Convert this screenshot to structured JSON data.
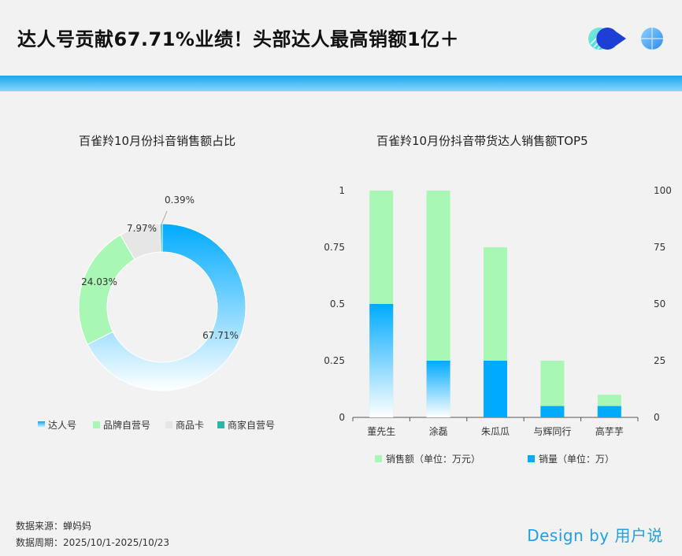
{
  "header": {
    "title": "达人号贡献67.71%业绩！头部达人最高销额1亿＋"
  },
  "colors": {
    "accent_blue": "#00aaff",
    "light_blue": "#cde9fb",
    "green": "#a9f7b4",
    "gray": "#e6e6e6",
    "teal": "#26b8a8",
    "brand": "#1ea0e6"
  },
  "chart_data": [
    {
      "type": "pie",
      "title": "百雀羚10月份抖音销售额占比",
      "labels": [
        "达人号",
        "品牌自营号",
        "商品卡",
        "商家自营号"
      ],
      "values": [
        67.71,
        24.03,
        7.97,
        0.39
      ],
      "value_labels": [
        "67.71%",
        "24.03%",
        "7.97%",
        "0.39%"
      ],
      "colors": [
        "#00aaff",
        "#a9f7b4",
        "#e6e6e6",
        "#26b8a8"
      ],
      "legend_position": "bottom",
      "donut": true
    },
    {
      "type": "bar",
      "title": "百雀羚10月份抖音带货达人销售额TOP5",
      "categories": [
        "董先生",
        "涂磊",
        "朱瓜瓜",
        "与辉同行",
        "高芋芋"
      ],
      "series": [
        {
          "name": "销售额（单位：万元）",
          "values": [
            1.0,
            1.0,
            0.75,
            0.25,
            0.1
          ],
          "axis": "left",
          "color": "#a9f7b4"
        },
        {
          "name": "销量（单位：万）",
          "values": [
            50,
            25,
            25,
            5,
            5
          ],
          "axis": "right",
          "color": "#00aaff"
        }
      ],
      "y_left": {
        "ylim": [
          0,
          1
        ],
        "ticks": [
          "0",
          "0.25",
          "0.5",
          "0.75",
          "1"
        ]
      },
      "y_right": {
        "ylim": [
          0,
          100
        ],
        "ticks": [
          "0",
          "25",
          "50",
          "75",
          "100"
        ]
      },
      "legend_position": "bottom",
      "grid": false
    }
  ],
  "footer": {
    "source": "数据来源：蝉妈妈",
    "period": "数据周期：2025/10/1-2025/10/23",
    "brand": "Design by 用户说"
  }
}
